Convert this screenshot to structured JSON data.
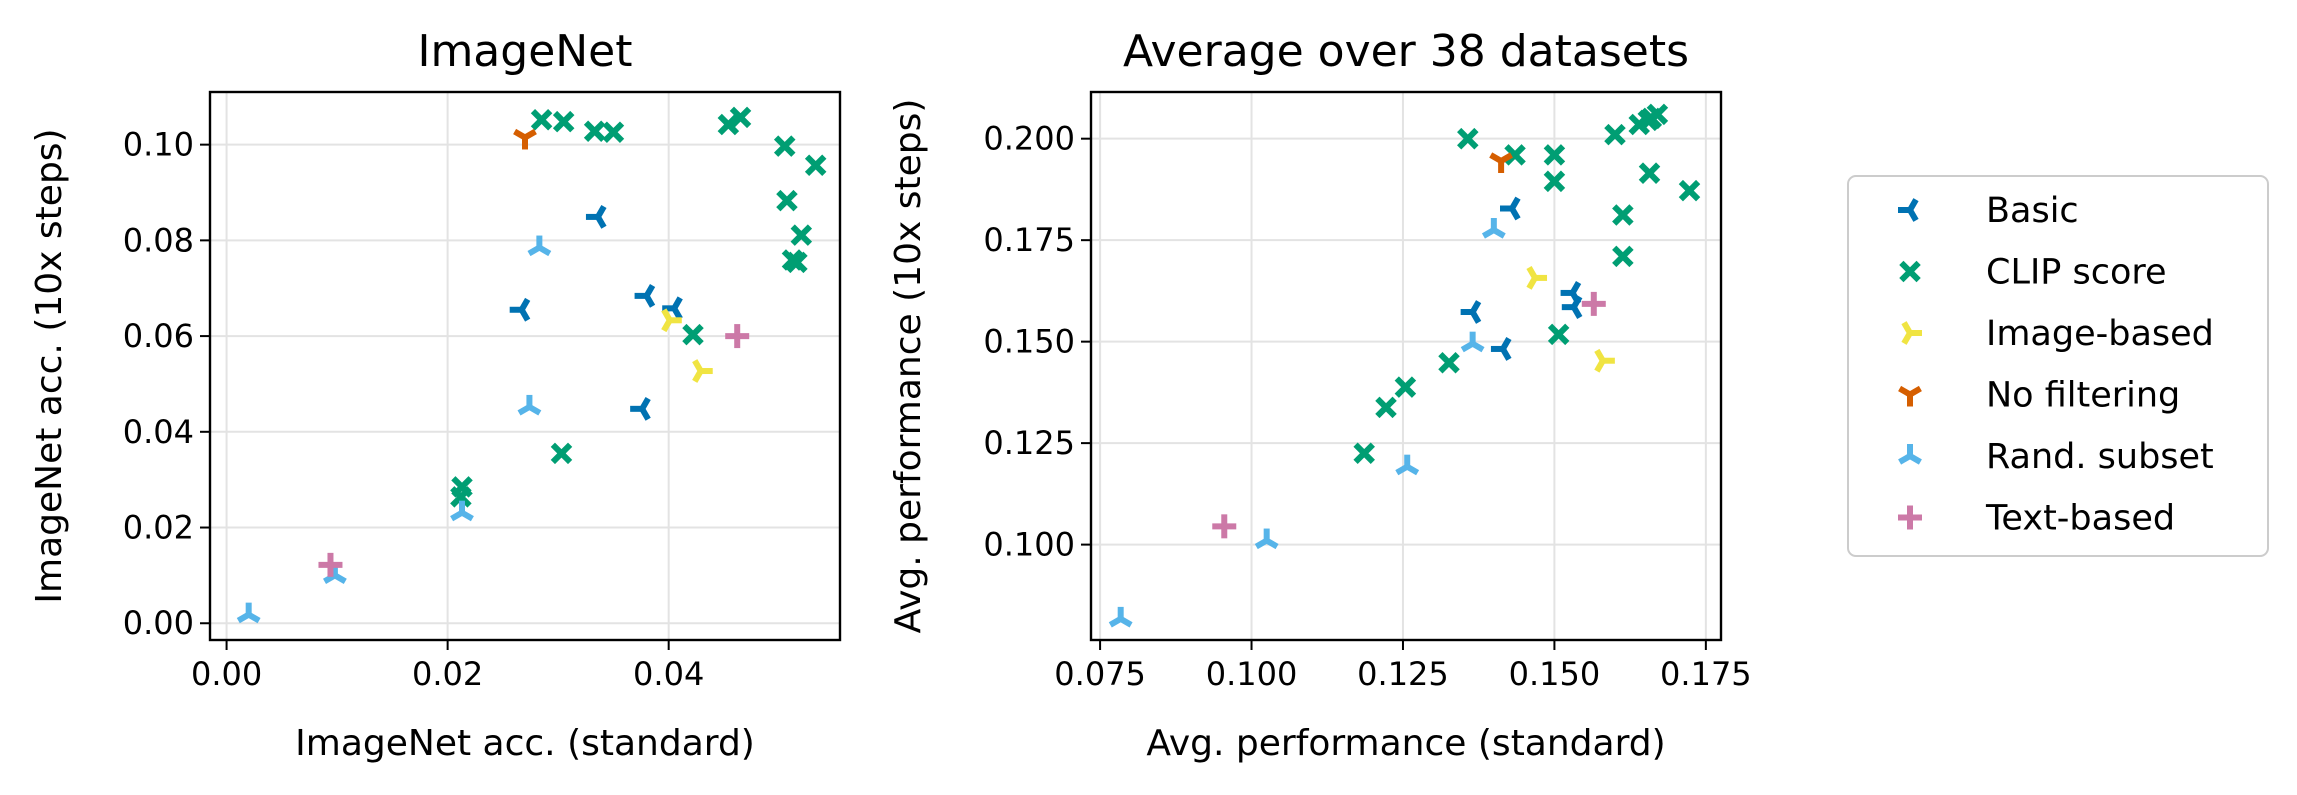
{
  "legend": {
    "placement": "right",
    "entries": [
      {
        "name": "Basic",
        "marker": "tri_left",
        "color": "#0072b2"
      },
      {
        "name": "CLIP score",
        "marker": "x",
        "color": "#009e73"
      },
      {
        "name": "Image-based",
        "marker": "tri_right",
        "color": "#f0e442"
      },
      {
        "name": "No filtering",
        "marker": "tri_down",
        "color": "#d55e00"
      },
      {
        "name": "Rand. subset",
        "marker": "tri_up",
        "color": "#56b4e9"
      },
      {
        "name": "Text-based",
        "marker": "plus",
        "color": "#cc79a7"
      }
    ]
  },
  "chart_data": [
    {
      "type": "scatter",
      "title": "ImageNet",
      "xlabel": "ImageNet acc. (standard)",
      "ylabel": "ImageNet acc. (10x steps)",
      "xlim": [
        -0.0015,
        0.0555
      ],
      "ylim": [
        -0.0035,
        0.111
      ],
      "xticks": [
        0.0,
        0.02,
        0.04
      ],
      "xtick_labels": [
        "0.00",
        "0.02",
        "0.04"
      ],
      "yticks": [
        0.0,
        0.02,
        0.04,
        0.06,
        0.08,
        0.1
      ],
      "ytick_labels": [
        "0.00",
        "0.02",
        "0.04",
        "0.06",
        "0.08",
        "0.10"
      ],
      "grid": true,
      "series": [
        {
          "name": "Basic",
          "points": [
            [
              0.0336,
              0.0849
            ],
            [
              0.0267,
              0.0655
            ],
            [
              0.038,
              0.0684
            ],
            [
              0.0405,
              0.0658
            ],
            [
              0.0376,
              0.0448
            ]
          ]
        },
        {
          "name": "CLIP score",
          "points": [
            [
              0.0285,
              0.1052
            ],
            [
              0.0305,
              0.1048
            ],
            [
              0.0333,
              0.1028
            ],
            [
              0.035,
              0.1026
            ],
            [
              0.0454,
              0.1042
            ],
            [
              0.0465,
              0.1057
            ],
            [
              0.0505,
              0.0997
            ],
            [
              0.0533,
              0.0957
            ],
            [
              0.0507,
              0.0883
            ],
            [
              0.052,
              0.0811
            ],
            [
              0.0512,
              0.0759
            ],
            [
              0.0516,
              0.0754
            ],
            [
              0.0422,
              0.0603
            ],
            [
              0.0303,
              0.0355
            ],
            [
              0.0213,
              0.0285
            ],
            [
              0.0212,
              0.0264
            ]
          ]
        },
        {
          "name": "Image-based",
          "points": [
            [
              0.0401,
              0.0633
            ],
            [
              0.0429,
              0.0527
            ]
          ]
        },
        {
          "name": "No filtering",
          "points": [
            [
              0.027,
              0.1015
            ]
          ]
        },
        {
          "name": "Rand. subset",
          "points": [
            [
              0.0283,
              0.0785
            ],
            [
              0.0274,
              0.0452
            ],
            [
              0.0213,
              0.0231
            ],
            [
              0.0098,
              0.01
            ],
            [
              0.002,
              0.0018
            ]
          ]
        },
        {
          "name": "Text-based",
          "points": [
            [
              0.0462,
              0.06
            ],
            [
              0.0094,
              0.0122
            ]
          ]
        }
      ]
    },
    {
      "type": "scatter",
      "title": "Average over 38 datasets",
      "xlabel": "Avg. performance (standard)",
      "ylabel": "Avg. performance (10x steps)",
      "xlim": [
        0.0735,
        0.1775
      ],
      "ylim": [
        0.0765,
        0.2115
      ],
      "xticks": [
        0.075,
        0.1,
        0.125,
        0.15,
        0.175
      ],
      "xtick_labels": [
        "0.075",
        "0.100",
        "0.125",
        "0.150",
        "0.175"
      ],
      "yticks": [
        0.1,
        0.125,
        0.15,
        0.175,
        0.2
      ],
      "ytick_labels": [
        "0.100",
        "0.125",
        "0.150",
        "0.175",
        "0.200"
      ],
      "grid": true,
      "series": [
        {
          "name": "Basic",
          "points": [
            [
              0.143,
              0.1828
            ],
            [
              0.1365,
              0.1573
            ],
            [
              0.1415,
              0.1482
            ],
            [
              0.153,
              0.162
            ],
            [
              0.1532,
              0.1585
            ]
          ]
        },
        {
          "name": "CLIP score",
          "points": [
            [
              0.1357,
              0.2
            ],
            [
              0.1435,
              0.196
            ],
            [
              0.15,
              0.196
            ],
            [
              0.15,
              0.1895
            ],
            [
              0.16,
              0.201
            ],
            [
              0.164,
              0.2035
            ],
            [
              0.1655,
              0.2045
            ],
            [
              0.166,
              0.205
            ],
            [
              0.167,
              0.206
            ],
            [
              0.1657,
              0.1915
            ],
            [
              0.1723,
              0.1872
            ],
            [
              0.1613,
              0.1812
            ],
            [
              0.1613,
              0.171
            ],
            [
              0.1507,
              0.1518
            ],
            [
              0.1326,
              0.1448
            ],
            [
              0.1254,
              0.1388
            ],
            [
              0.1222,
              0.1338
            ],
            [
              0.1186,
              0.1225
            ]
          ]
        },
        {
          "name": "Image-based",
          "points": [
            [
              0.1468,
              0.1657
            ],
            [
              0.158,
              0.1453
            ]
          ]
        },
        {
          "name": "No filtering",
          "points": [
            [
              0.1412,
              0.1945
            ]
          ]
        },
        {
          "name": "Rand. subset",
          "points": [
            [
              0.14,
              0.1775
            ],
            [
              0.1365,
              0.1495
            ],
            [
              0.1257,
              0.1192
            ],
            [
              0.1025,
              0.101
            ],
            [
              0.0784,
              0.0817
            ]
          ]
        },
        {
          "name": "Text-based",
          "points": [
            [
              0.1565,
              0.1593
            ],
            [
              0.0955,
              0.1045
            ]
          ]
        }
      ]
    }
  ]
}
